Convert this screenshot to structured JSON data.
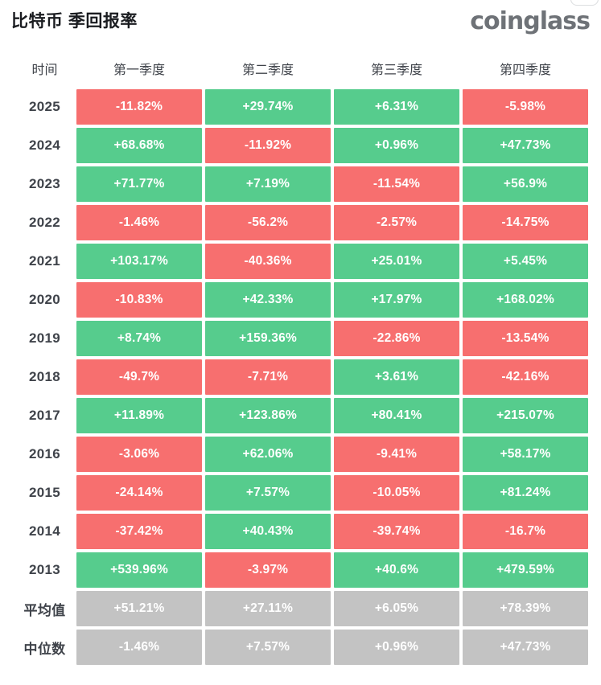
{
  "page": {
    "title": "比特币 季回报率",
    "logo_text": "coinglass"
  },
  "chart_data": {
    "type": "table",
    "subtype": "quarterly-returns-heatmap",
    "title": "比特币 季回报率",
    "unit": "%",
    "columns": [
      "时间",
      "第一季度",
      "第二季度",
      "第三季度",
      "第四季度"
    ],
    "rows": [
      {
        "label": "2025",
        "kind": "year",
        "values": [
          -11.82,
          29.74,
          6.31,
          -5.98
        ]
      },
      {
        "label": "2024",
        "kind": "year",
        "values": [
          68.68,
          -11.92,
          0.96,
          47.73
        ]
      },
      {
        "label": "2023",
        "kind": "year",
        "values": [
          71.77,
          7.19,
          -11.54,
          56.9
        ]
      },
      {
        "label": "2022",
        "kind": "year",
        "values": [
          -1.46,
          -56.2,
          -2.57,
          -14.75
        ]
      },
      {
        "label": "2021",
        "kind": "year",
        "values": [
          103.17,
          -40.36,
          25.01,
          5.45
        ]
      },
      {
        "label": "2020",
        "kind": "year",
        "values": [
          -10.83,
          42.33,
          17.97,
          168.02
        ]
      },
      {
        "label": "2019",
        "kind": "year",
        "values": [
          8.74,
          159.36,
          -22.86,
          -13.54
        ]
      },
      {
        "label": "2018",
        "kind": "year",
        "values": [
          -49.7,
          -7.71,
          3.61,
          -42.16
        ]
      },
      {
        "label": "2017",
        "kind": "year",
        "values": [
          11.89,
          123.86,
          80.41,
          215.07
        ]
      },
      {
        "label": "2016",
        "kind": "year",
        "values": [
          -3.06,
          62.06,
          -9.41,
          58.17
        ]
      },
      {
        "label": "2015",
        "kind": "year",
        "values": [
          -24.14,
          7.57,
          -10.05,
          81.24
        ]
      },
      {
        "label": "2014",
        "kind": "year",
        "values": [
          -37.42,
          40.43,
          -39.74,
          -16.7
        ]
      },
      {
        "label": "2013",
        "kind": "year",
        "values": [
          539.96,
          -3.97,
          40.6,
          479.59
        ]
      },
      {
        "label": "平均值",
        "kind": "summary",
        "values": [
          51.21,
          27.11,
          6.05,
          78.39
        ]
      },
      {
        "label": "中位数",
        "kind": "summary",
        "values": [
          -1.46,
          7.57,
          0.96,
          47.73
        ]
      }
    ],
    "colors": {
      "positive": "#56cc8d",
      "negative": "#f76f6f",
      "neutral": "#c3c3c3"
    },
    "layout": {
      "value_prefix_positive": "+",
      "value_suffix": "%",
      "grid": "off",
      "legend": "none"
    }
  }
}
